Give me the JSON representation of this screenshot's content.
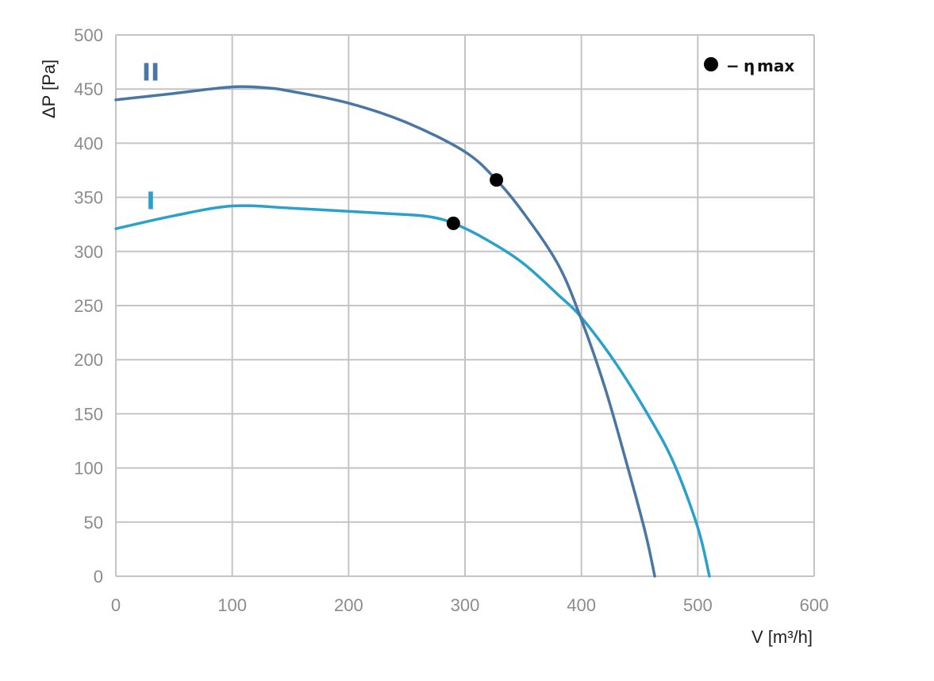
{
  "chart_data": {
    "type": "line",
    "xlabel": "V [m³/h]",
    "ylabel": "ΔP [Pa]",
    "xlim": [
      0,
      600
    ],
    "ylim": [
      0,
      500
    ],
    "x_ticks": [
      0,
      100,
      200,
      300,
      400,
      500,
      600
    ],
    "y_ticks": [
      0,
      50,
      100,
      150,
      200,
      250,
      300,
      350,
      400,
      450,
      500
    ],
    "grid": true,
    "series": [
      {
        "name": "I",
        "color": "#2aa0cc",
        "points": [
          [
            0,
            321
          ],
          [
            50,
            333
          ],
          [
            100,
            342
          ],
          [
            150,
            340
          ],
          [
            200,
            337
          ],
          [
            250,
            334
          ],
          [
            270,
            332
          ],
          [
            290,
            326
          ],
          [
            320,
            310
          ],
          [
            350,
            289
          ],
          [
            380,
            260
          ],
          [
            400,
            239
          ],
          [
            430,
            196
          ],
          [
            460,
            144
          ],
          [
            480,
            103
          ],
          [
            500,
            45
          ],
          [
            510,
            0
          ]
        ],
        "eta_max": [
          290,
          326
        ]
      },
      {
        "name": "II",
        "color": "#4a76a3",
        "points": [
          [
            0,
            440
          ],
          [
            50,
            446
          ],
          [
            100,
            452
          ],
          [
            130,
            451
          ],
          [
            150,
            448
          ],
          [
            200,
            437
          ],
          [
            250,
            419
          ],
          [
            300,
            392
          ],
          [
            327,
            366
          ],
          [
            350,
            336
          ],
          [
            380,
            288
          ],
          [
            400,
            237
          ],
          [
            420,
            175
          ],
          [
            440,
            100
          ],
          [
            455,
            40
          ],
          [
            463,
            0
          ]
        ],
        "eta_max": [
          327,
          366
        ]
      }
    ],
    "legend": {
      "position": "top-right",
      "marker": "●",
      "dash": "−",
      "symbol": "η",
      "subscript": "max"
    }
  }
}
